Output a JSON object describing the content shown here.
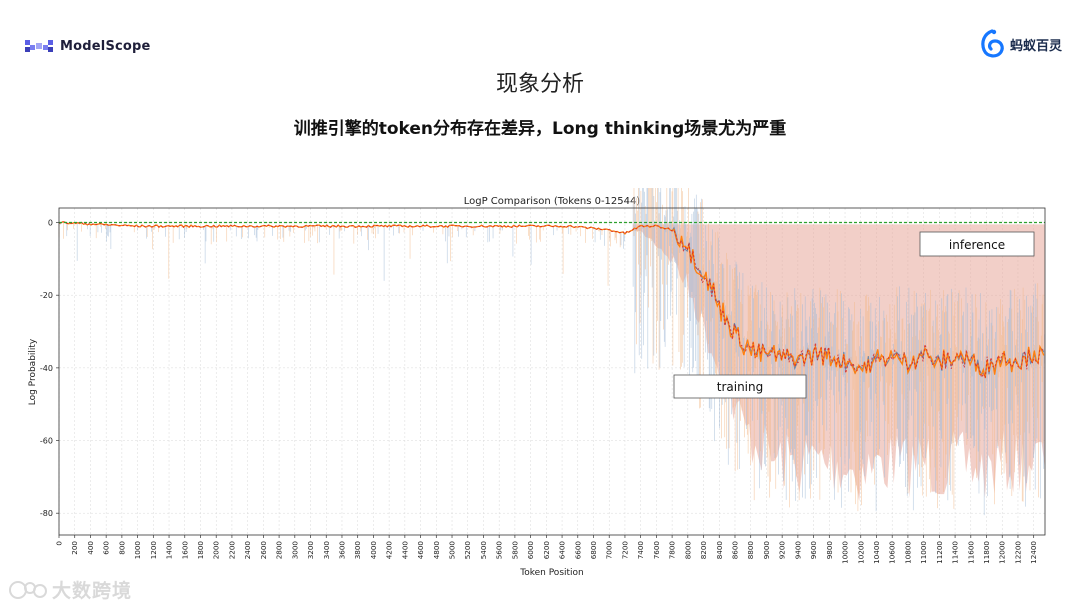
{
  "header": {
    "left_logo_text": "ModelScope",
    "right_logo_text": "蚂蚁百灵",
    "title": "现象分析",
    "subtitle": "训推引擎的token分布存在差异，Long thinking场景尤为严重"
  },
  "watermark": {
    "text": "大数跨境"
  },
  "colors": {
    "training_line": "#ff7f0e",
    "inference_line": "#2ca02c",
    "diff_fill": "#e8a79b",
    "blue_line": "#4e79a7",
    "red_line": "#d62728"
  },
  "chart_data": {
    "type": "line",
    "title": "LogP Comparison (Tokens 0-12544)",
    "xlabel": "Token Position",
    "ylabel": "Log Probability",
    "xlim": [
      0,
      12544
    ],
    "ylim": [
      -86,
      4
    ],
    "yticks": [
      0,
      -20,
      -40,
      -60,
      -80
    ],
    "xtick_step": 200,
    "grid": true,
    "annotations": [
      {
        "text": "inference"
      },
      {
        "text": "training"
      }
    ],
    "series": [
      {
        "x": [
          0,
          1000,
          2000,
          3000,
          4000,
          5000,
          6000,
          6500,
          7000,
          7200,
          7400,
          7600,
          7800,
          7900,
          8000,
          8100,
          8200,
          8300,
          8400,
          8500,
          8600,
          8700,
          8800,
          9000,
          9200,
          9400,
          9600,
          9800,
          10000,
          10200,
          10400,
          10600,
          10800,
          11000,
          11200,
          11400,
          11600,
          11800,
          12000,
          12200,
          12400,
          12544
        ],
        "y": [
          0,
          -1,
          -1,
          -1,
          -1,
          -1,
          -1,
          -1,
          -2,
          -3,
          -1,
          -1,
          -2,
          -4,
          -7,
          -10,
          -14,
          -18,
          -23,
          -27,
          -30,
          -33,
          -35,
          -36,
          -37,
          -38,
          -36,
          -37,
          -38,
          -40,
          -38,
          -37,
          -38,
          -36,
          -39,
          -37,
          -38,
          -40,
          -37,
          -38,
          -36,
          -37
        ]
      },
      {
        "x": [
          0,
          1000,
          2000,
          3000,
          4000,
          5000,
          6000,
          7000,
          8000,
          9000,
          10000,
          11000,
          12000,
          12544
        ],
        "y": [
          0,
          0,
          0,
          0,
          0,
          0,
          0,
          0,
          0,
          0,
          0,
          0,
          0,
          0
        ]
      }
    ]
  }
}
